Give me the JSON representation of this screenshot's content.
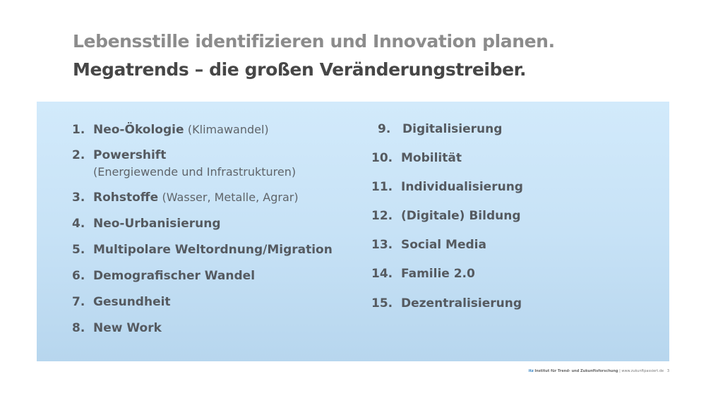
{
  "slide": {
    "title_line1": "Lebensstille identifizieren und Innovation planen.",
    "title_line2": "Megatrends – die großen Veränderungstreiber.",
    "left_items": [
      {
        "num": "1.",
        "label": "Neo-Ökologie",
        "note": "(Klimawandel)"
      },
      {
        "num": "2.",
        "label": "Powershift",
        "note": "(Energiewende und Infrastrukturen)"
      },
      {
        "num": "3.",
        "label": "Rohstoffe",
        "note": "(Wasser, Metalle, Agrar)"
      },
      {
        "num": "4.",
        "label": "Neo-Urbanisierung",
        "note": ""
      },
      {
        "num": "5.",
        "label": "Multipolare Weltordnung/Migration",
        "note": ""
      },
      {
        "num": "6.",
        "label": "Demografischer Wandel",
        "note": ""
      },
      {
        "num": "7.",
        "label": "Gesundheit",
        "note": ""
      },
      {
        "num": "8.",
        "label": "New Work",
        "note": ""
      }
    ],
    "right_items": [
      {
        "num": "9.",
        "label": "Digitalisierung"
      },
      {
        "num": "10.",
        "label": "Mobilität"
      },
      {
        "num": "11.",
        "label": "Individualisierung"
      },
      {
        "num": "12.",
        "label": "(Digitale) Bildung"
      },
      {
        "num": "13.",
        "label": "Social Media"
      },
      {
        "num": "14.",
        "label": "Familie 2.0"
      },
      {
        "num": "15.",
        "label": "Dezentralisierung"
      }
    ]
  },
  "footer": {
    "brand": "itz",
    "org": "Institut für Trend- und Zukunftsforschung",
    "site": "| www.zukunftpassiert.de",
    "page": "3"
  },
  "colors": {
    "title_light": "#8c8c8c",
    "title_dark": "#474747",
    "panel_top": "#d2eafb",
    "panel_bottom": "#b7d6ee",
    "text": "#555a60",
    "brand": "#2f7fc0"
  }
}
